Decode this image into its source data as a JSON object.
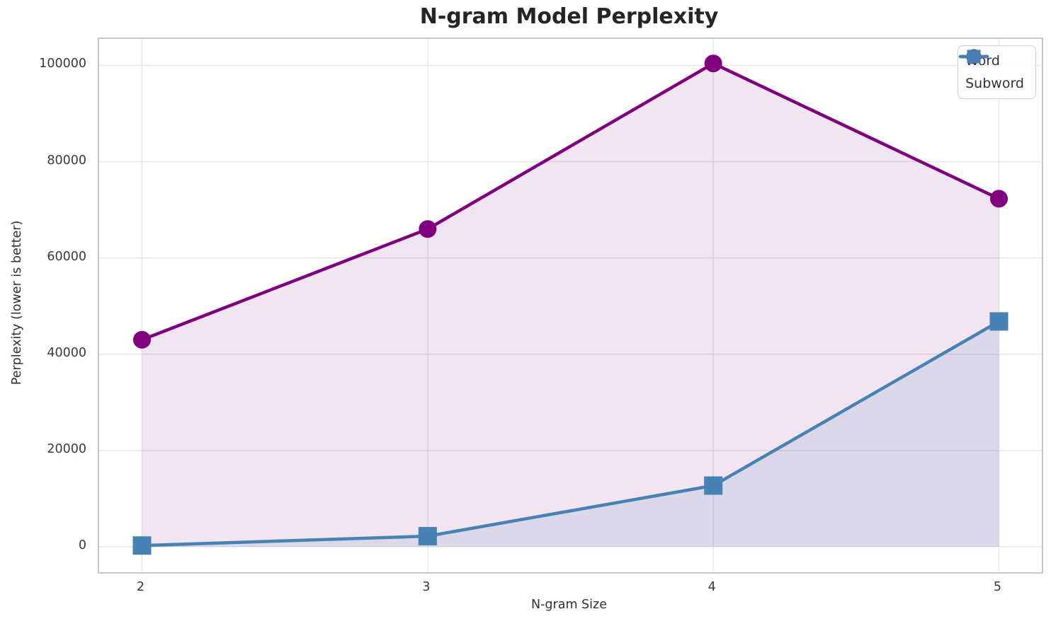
{
  "chart_data": {
    "type": "line",
    "title": "N-gram Model Perplexity",
    "xlabel": "N-gram Size",
    "ylabel": "Perplexity (lower is better)",
    "x": [
      2,
      3,
      4,
      5
    ],
    "x_tick_labels": [
      "2",
      "3",
      "4",
      "5"
    ],
    "y_ticks": [
      0,
      20000,
      40000,
      60000,
      80000,
      100000
    ],
    "y_tick_labels": [
      "0",
      "20000",
      "40000",
      "60000",
      "80000",
      "100000"
    ],
    "xlim": [
      1.85,
      5.15
    ],
    "ylim": [
      -5300,
      105500
    ],
    "grid": true,
    "legend_position": "upper right",
    "series": [
      {
        "name": "Word",
        "marker": "circle",
        "color": "#800080",
        "fill_color": "rgba(128,0,128,0.10)",
        "values": [
          43000,
          66000,
          100400,
          72300
        ]
      },
      {
        "name": "Subword",
        "marker": "square",
        "color": "#4682b4",
        "fill_color": "rgba(70,130,180,0.13)",
        "values": [
          250,
          2200,
          12700,
          46800
        ]
      }
    ],
    "colors": {
      "grid": "#e7e7e7",
      "spine": "#c8c8c8",
      "tick_label": "#3a3a3a",
      "title": "#252525"
    }
  }
}
